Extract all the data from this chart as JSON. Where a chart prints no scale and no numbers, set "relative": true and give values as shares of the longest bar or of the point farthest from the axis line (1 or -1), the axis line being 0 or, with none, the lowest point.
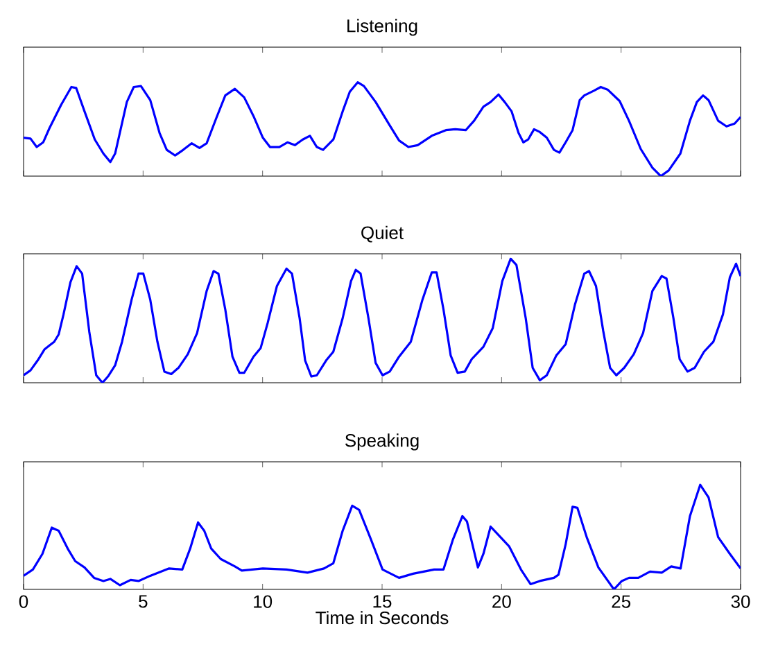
{
  "chart_data": [
    {
      "type": "line",
      "title": "Listening",
      "relative": true,
      "color": "#0000ff",
      "xlim": [
        0,
        30
      ],
      "xticks": [
        0,
        5,
        10,
        15,
        20,
        25,
        30
      ],
      "tick_labels": false,
      "x": [
        0,
        0.29,
        0.55,
        0.82,
        1.08,
        1.57,
        2.0,
        2.2,
        2.55,
        2.98,
        3.34,
        3.63,
        3.83,
        4.32,
        4.61,
        4.91,
        5.3,
        5.69,
        5.99,
        6.34,
        6.68,
        7.03,
        7.36,
        7.66,
        8.05,
        8.44,
        8.84,
        9.23,
        9.62,
        10.01,
        10.31,
        10.7,
        11.04,
        11.35,
        11.68,
        11.98,
        12.27,
        12.53,
        12.96,
        13.35,
        13.65,
        13.98,
        14.24,
        14.73,
        15.32,
        15.71,
        16.1,
        16.49,
        17.08,
        17.67,
        18.06,
        18.5,
        18.85,
        19.24,
        19.54,
        19.87,
        20.13,
        20.42,
        20.71,
        20.91,
        21.11,
        21.36,
        21.6,
        21.89,
        22.19,
        22.42,
        22.68,
        22.97,
        23.27,
        23.46,
        23.86,
        24.15,
        24.45,
        24.94,
        25.33,
        25.82,
        26.31,
        26.66,
        26.99,
        27.48,
        27.88,
        28.17,
        28.43,
        28.66,
        29.06,
        29.41,
        29.75,
        30.0
      ],
      "values": [
        0.41,
        0.4,
        0.31,
        0.36,
        0.51,
        0.76,
        0.95,
        0.94,
        0.69,
        0.39,
        0.24,
        0.15,
        0.24,
        0.79,
        0.95,
        0.96,
        0.81,
        0.46,
        0.28,
        0.22,
        0.28,
        0.35,
        0.3,
        0.35,
        0.61,
        0.86,
        0.93,
        0.84,
        0.64,
        0.41,
        0.31,
        0.31,
        0.36,
        0.33,
        0.39,
        0.43,
        0.31,
        0.28,
        0.39,
        0.69,
        0.9,
        1.0,
        0.96,
        0.79,
        0.54,
        0.38,
        0.31,
        0.33,
        0.43,
        0.49,
        0.5,
        0.49,
        0.59,
        0.74,
        0.79,
        0.87,
        0.79,
        0.69,
        0.46,
        0.36,
        0.39,
        0.5,
        0.47,
        0.41,
        0.28,
        0.25,
        0.36,
        0.49,
        0.81,
        0.86,
        0.91,
        0.95,
        0.92,
        0.8,
        0.59,
        0.29,
        0.09,
        0,
        0.06,
        0.24,
        0.59,
        0.79,
        0.86,
        0.81,
        0.59,
        0.53,
        0.56,
        0.63
      ]
    },
    {
      "type": "line",
      "title": "Quiet",
      "relative": true,
      "color": "#0000ff",
      "xlim": [
        0,
        30
      ],
      "xticks": [
        0,
        5,
        10,
        15,
        20,
        25,
        30
      ],
      "tick_labels": false,
      "x": [
        0,
        0.29,
        0.59,
        0.88,
        1.08,
        1.28,
        1.47,
        1.67,
        1.96,
        2.22,
        2.45,
        2.75,
        3.04,
        3.3,
        3.53,
        3.83,
        4.12,
        4.52,
        4.81,
        5.01,
        5.3,
        5.6,
        5.89,
        6.18,
        6.48,
        6.87,
        7.26,
        7.66,
        7.95,
        8.15,
        8.44,
        8.74,
        9.03,
        9.23,
        9.62,
        9.92,
        10.21,
        10.6,
        11.0,
        11.23,
        11.55,
        11.78,
        12.04,
        12.27,
        12.66,
        12.96,
        13.35,
        13.7,
        13.9,
        14.1,
        14.43,
        14.73,
        15.02,
        15.32,
        15.71,
        16.2,
        16.69,
        17.08,
        17.28,
        17.57,
        17.87,
        18.16,
        18.46,
        18.75,
        19.24,
        19.63,
        20.03,
        20.38,
        20.62,
        21.01,
        21.3,
        21.6,
        21.89,
        22.29,
        22.68,
        23.07,
        23.46,
        23.66,
        23.95,
        24.25,
        24.54,
        24.8,
        25.13,
        25.53,
        25.92,
        26.31,
        26.7,
        26.9,
        27.19,
        27.45,
        27.78,
        28.08,
        28.47,
        28.86,
        29.26,
        29.55,
        29.81,
        30.0
      ],
      "values": [
        0.06,
        0.1,
        0.18,
        0.27,
        0.3,
        0.33,
        0.39,
        0.55,
        0.81,
        0.94,
        0.88,
        0.41,
        0.06,
        0,
        0.05,
        0.14,
        0.33,
        0.67,
        0.88,
        0.88,
        0.67,
        0.33,
        0.09,
        0.07,
        0.12,
        0.23,
        0.4,
        0.74,
        0.9,
        0.88,
        0.59,
        0.21,
        0.08,
        0.08,
        0.21,
        0.28,
        0.48,
        0.78,
        0.92,
        0.88,
        0.52,
        0.18,
        0.05,
        0.06,
        0.18,
        0.25,
        0.52,
        0.82,
        0.91,
        0.88,
        0.52,
        0.16,
        0.06,
        0.09,
        0.21,
        0.33,
        0.67,
        0.89,
        0.89,
        0.59,
        0.22,
        0.08,
        0.09,
        0.19,
        0.29,
        0.44,
        0.82,
        1.0,
        0.95,
        0.52,
        0.12,
        0.02,
        0.06,
        0.22,
        0.31,
        0.63,
        0.88,
        0.9,
        0.78,
        0.42,
        0.12,
        0.06,
        0.12,
        0.23,
        0.4,
        0.74,
        0.86,
        0.84,
        0.52,
        0.19,
        0.09,
        0.12,
        0.25,
        0.33,
        0.55,
        0.85,
        0.96,
        0.86
      ]
    },
    {
      "type": "line",
      "title": "Speaking",
      "xlabel": "Time in Seconds",
      "relative": true,
      "color": "#0000ff",
      "xlim": [
        0,
        30
      ],
      "xticks": [
        0,
        5,
        10,
        15,
        20,
        25,
        30
      ],
      "tick_labels": "x",
      "x": [
        0,
        0.39,
        0.79,
        1.18,
        1.47,
        1.87,
        2.16,
        2.55,
        2.95,
        3.34,
        3.63,
        4.03,
        4.48,
        4.81,
        5.3,
        6.09,
        6.64,
        6.97,
        7.3,
        7.56,
        7.85,
        8.25,
        8.84,
        9.13,
        10.01,
        11.0,
        11.88,
        12.57,
        12.96,
        13.35,
        13.75,
        14.04,
        14.53,
        15.02,
        15.71,
        16.3,
        17.18,
        17.57,
        17.97,
        18.36,
        18.55,
        19.01,
        19.24,
        19.54,
        19.83,
        20.32,
        20.81,
        21.21,
        21.6,
        22.19,
        22.38,
        22.68,
        22.97,
        23.17,
        23.56,
        24.05,
        24.7,
        25.03,
        25.33,
        25.72,
        26.21,
        26.7,
        27.1,
        27.49,
        27.88,
        28.31,
        28.66,
        29.06,
        29.55,
        30.0
      ],
      "values": [
        0.13,
        0.19,
        0.34,
        0.59,
        0.56,
        0.38,
        0.27,
        0.21,
        0.11,
        0.08,
        0.1,
        0.04,
        0.09,
        0.08,
        0.13,
        0.2,
        0.19,
        0.39,
        0.64,
        0.56,
        0.39,
        0.29,
        0.22,
        0.18,
        0.2,
        0.19,
        0.16,
        0.2,
        0.25,
        0.56,
        0.8,
        0.76,
        0.48,
        0.19,
        0.11,
        0.15,
        0.19,
        0.19,
        0.48,
        0.7,
        0.65,
        0.21,
        0.34,
        0.6,
        0.53,
        0.41,
        0.19,
        0.05,
        0.08,
        0.11,
        0.14,
        0.43,
        0.79,
        0.78,
        0.5,
        0.21,
        0,
        0.08,
        0.11,
        0.11,
        0.17,
        0.16,
        0.22,
        0.2,
        0.7,
        1.0,
        0.88,
        0.5,
        0.34,
        0.2
      ]
    }
  ]
}
